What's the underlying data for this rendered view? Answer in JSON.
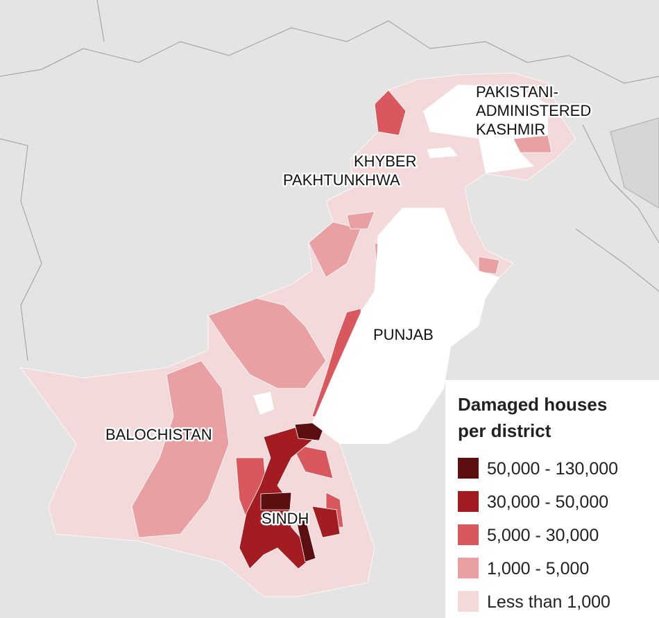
{
  "labels": {
    "kashmir": [
      "PAKISTANI-",
      "ADMINISTERED",
      "KASHMIR"
    ],
    "khyber": [
      "KHYBER",
      "PAKHTUNKHWA"
    ],
    "punjab": "PUNJAB",
    "balochistan": "BALOCHISTAN",
    "sindh": "SINDH"
  },
  "legend": {
    "title": [
      "Damaged houses",
      "per district"
    ],
    "items": [
      {
        "label": "50,000 - 130,000",
        "color": "#5c0f10"
      },
      {
        "label": "30,000 - 50,000",
        "color": "#a31c22"
      },
      {
        "label": "5,000 - 30,000",
        "color": "#d9585d"
      },
      {
        "label": "1,000 - 5,000",
        "color": "#e8a0a2"
      },
      {
        "label": "Less than 1,000",
        "color": "#f3d9da"
      }
    ]
  }
}
